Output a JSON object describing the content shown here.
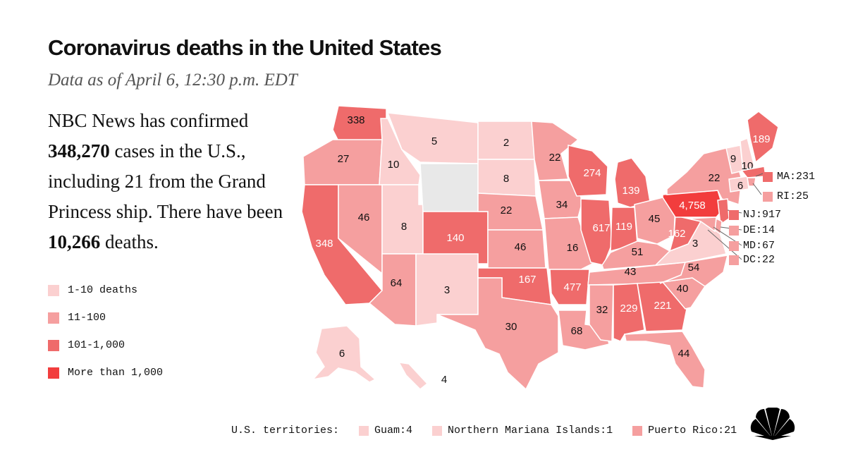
{
  "title": "Coronavirus deaths in the United States",
  "subtitle": "Data as of April 6, 12:30 p.m. EDT",
  "summary": {
    "part1": "NBC News has confirmed",
    "cases": "348,270",
    "part2": "cases in the U.S., including 21 from the Grand Princess ship. There have been",
    "deaths": "10,266",
    "part3": "deaths."
  },
  "colors": {
    "bin1": "#fbd0d0",
    "bin2": "#f59f9f",
    "bin3": "#ef6b6b",
    "bin4": "#f23d3d",
    "nodata": "#e8e8e8",
    "border": "#ffffff"
  },
  "legend": [
    {
      "label": "1-10 deaths",
      "bin": "bin1"
    },
    {
      "label": "11-100",
      "bin": "bin2"
    },
    {
      "label": "101-1,000",
      "bin": "bin3"
    },
    {
      "label": "More than 1,000",
      "bin": "bin4"
    }
  ],
  "states": [
    {
      "label": "338",
      "bin": "bin3"
    },
    {
      "label": "27",
      "bin": "bin2"
    },
    {
      "label": "348",
      "bin": "bin3"
    },
    {
      "label": "46",
      "bin": "bin2"
    },
    {
      "label": "10",
      "bin": "bin1"
    },
    {
      "label": "8",
      "bin": "bin1"
    },
    {
      "label": "5",
      "bin": "bin1"
    },
    {
      "label": "",
      "bin": "nodata"
    },
    {
      "label": "140",
      "bin": "bin3"
    },
    {
      "label": "64",
      "bin": "bin2"
    },
    {
      "label": "3",
      "bin": "bin1"
    },
    {
      "label": "2",
      "bin": "bin1"
    },
    {
      "label": "8",
      "bin": "bin1"
    },
    {
      "label": "22",
      "bin": "bin2"
    },
    {
      "label": "46",
      "bin": "bin2"
    },
    {
      "label": "167",
      "bin": "bin3"
    },
    {
      "label": "30",
      "bin": "bin2"
    },
    {
      "label": "22",
      "bin": "bin2"
    },
    {
      "label": "34",
      "bin": "bin2"
    },
    {
      "label": "16",
      "bin": "bin2"
    },
    {
      "label": "477",
      "bin": "bin3"
    },
    {
      "label": "68",
      "bin": "bin2"
    },
    {
      "label": "274",
      "bin": "bin3"
    },
    {
      "label": "617",
      "bin": "bin3"
    },
    {
      "label": "139",
      "bin": "bin3"
    },
    {
      "label": "119",
      "bin": "bin3"
    },
    {
      "label": "45",
      "bin": "bin2"
    },
    {
      "label": "51",
      "bin": "bin2"
    },
    {
      "label": "43",
      "bin": "bin2"
    },
    {
      "label": "32",
      "bin": "bin2"
    },
    {
      "label": "229",
      "bin": "bin3"
    },
    {
      "label": "221",
      "bin": "bin3"
    },
    {
      "label": "44",
      "bin": "bin2"
    },
    {
      "label": "40",
      "bin": "bin2"
    },
    {
      "label": "54",
      "bin": "bin2"
    },
    {
      "label": "3",
      "bin": "bin1"
    },
    {
      "label": "162",
      "bin": "bin3"
    },
    {
      "label": "4,758",
      "bin": "bin4"
    },
    {
      "label": "22",
      "bin": "bin2"
    },
    {
      "label": "9",
      "bin": "bin1"
    },
    {
      "label": "10",
      "bin": "bin1"
    },
    {
      "label": "189",
      "bin": "bin3"
    },
    {
      "label": "6",
      "bin": "bin1"
    },
    {
      "label": "4",
      "bin": "bin1"
    }
  ],
  "callouts": [
    {
      "label": "MA:231",
      "bin": "bin3"
    },
    {
      "label": "RI:25",
      "bin": "bin2"
    },
    {
      "label": "NJ:917",
      "bin": "bin3"
    },
    {
      "label": "DE:14",
      "bin": "bin2"
    },
    {
      "label": "MD:67",
      "bin": "bin2"
    },
    {
      "label": "DC:22",
      "bin": "bin2"
    }
  ],
  "territories": {
    "heading": "U.S. territories:",
    "items": [
      {
        "label": "Guam:4",
        "bin": "bin1"
      },
      {
        "label": "Northern Mariana Islands:1",
        "bin": "bin1"
      },
      {
        "label": "Puerto Rico:21",
        "bin": "bin2"
      }
    ]
  },
  "logo_icon": "nbc-peacock-icon"
}
